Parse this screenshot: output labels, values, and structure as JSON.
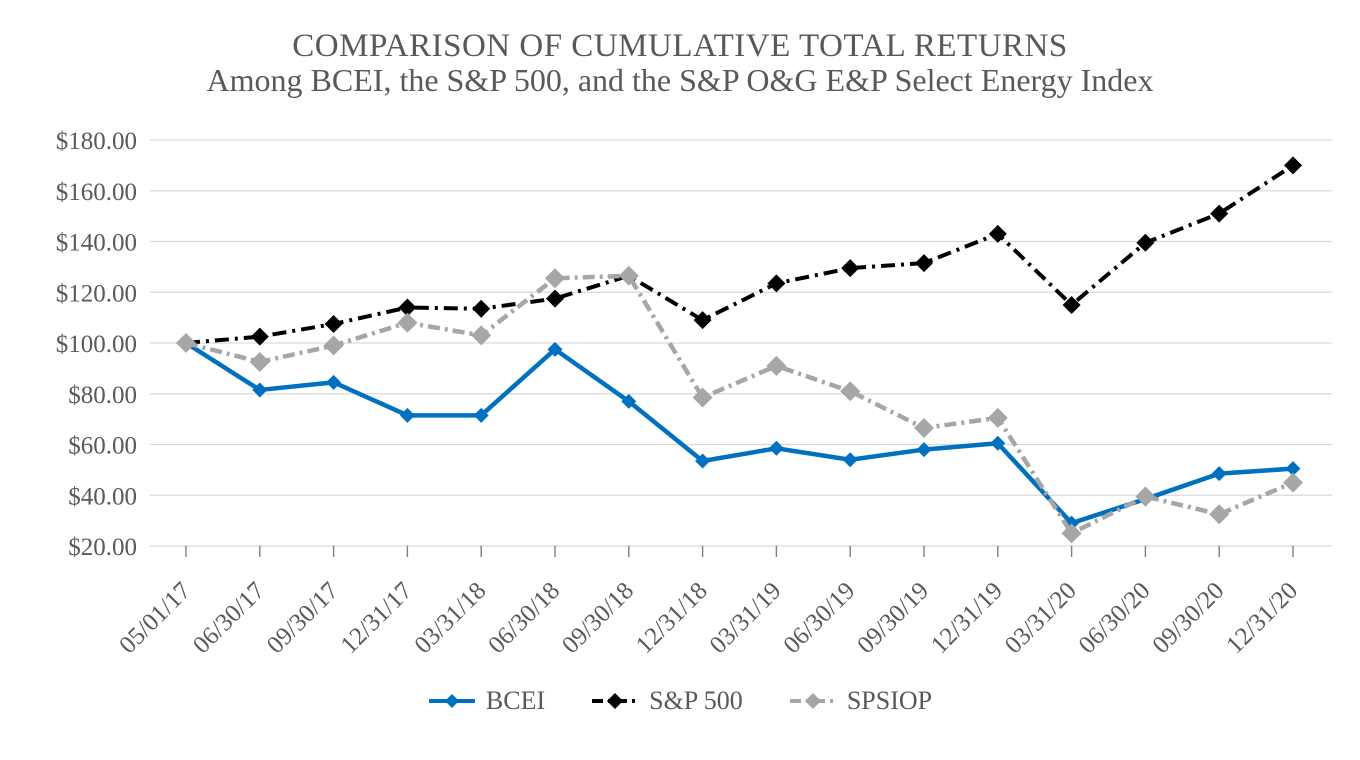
{
  "title": "COMPARISON OF CUMULATIVE TOTAL RETURNS",
  "subtitle": "Among BCEI, the S&P 500, and the S&P O&G E&P Select Energy Index",
  "chart_data": {
    "type": "line",
    "categories": [
      "05/01/17",
      "06/30/17",
      "09/30/17",
      "12/31/17",
      "03/31/18",
      "06/30/18",
      "09/30/18",
      "12/31/18",
      "03/31/19",
      "06/30/19",
      "09/30/19",
      "12/31/19",
      "03/31/20",
      "06/30/20",
      "09/30/20",
      "12/31/20"
    ],
    "series": [
      {
        "name": "BCEI",
        "color": "#0070C0",
        "style": "solid",
        "marker": "diamond",
        "values": [
          100,
          81.5,
          84.5,
          71.5,
          71.5,
          97.5,
          77,
          53.5,
          58.5,
          54,
          58,
          60.5,
          29,
          38.5,
          48.5,
          50.5
        ]
      },
      {
        "name": "S&P 500",
        "color": "#000000",
        "style": "long-dash-dot",
        "marker": "diamond",
        "values": [
          100,
          102.5,
          107.5,
          114,
          113.5,
          117.5,
          126.5,
          109,
          123.5,
          129.5,
          131.5,
          143,
          115,
          139.5,
          151,
          170
        ]
      },
      {
        "name": "SPSIOP",
        "color": "#A6A6A6",
        "style": "dash-dot",
        "marker": "diamond",
        "values": [
          100,
          92.5,
          99,
          108,
          103,
          125.5,
          126.5,
          78.5,
          91,
          81,
          66.5,
          70.5,
          25,
          39.5,
          32.5,
          45
        ]
      }
    ],
    "ylim": [
      20,
      180
    ],
    "ytick_step": 20,
    "ytick_prefix": "$",
    "ytick_decimals": 2,
    "xlabel": "",
    "ylabel": "",
    "grid": true,
    "legend_position": "bottom-center"
  },
  "colors": {
    "background": "#FFFFFF",
    "gridline": "#D9D9D9",
    "axis_text": "#595959",
    "title_text": "#595959",
    "tick_mark": "#7F7F7F"
  }
}
